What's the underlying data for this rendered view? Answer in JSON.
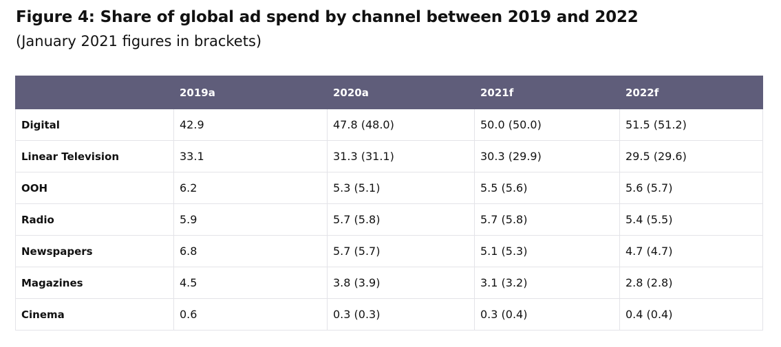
{
  "title": "Figure 4: Share of global ad spend by channel between 2019 and 2022",
  "subtitle": "(January 2021 figures in brackets)",
  "colors": {
    "header_bg": "#5f5d7a",
    "header_text": "#ffffff",
    "border": "#e3e3e8"
  },
  "table": {
    "columns": [
      "",
      "2019a",
      "2020a",
      "2021f",
      "2022f"
    ],
    "rows": [
      {
        "label": "Digital",
        "values": [
          "42.9",
          "47.8 (48.0)",
          "50.0 (50.0)",
          "51.5 (51.2)"
        ]
      },
      {
        "label": "Linear Television",
        "values": [
          "33.1",
          "31.3 (31.1)",
          "30.3 (29.9)",
          "29.5 (29.6)"
        ]
      },
      {
        "label": "OOH",
        "values": [
          "6.2",
          "5.3 (5.1)",
          "5.5 (5.6)",
          "5.6 (5.7)"
        ]
      },
      {
        "label": "Radio",
        "values": [
          "5.9",
          "5.7 (5.8)",
          "5.7 (5.8)",
          "5.4 (5.5)"
        ]
      },
      {
        "label": "Newspapers",
        "values": [
          "6.8",
          "5.7 (5.7)",
          "5.1 (5.3)",
          "4.7 (4.7)"
        ]
      },
      {
        "label": "Magazines",
        "values": [
          "4.5",
          "3.8 (3.9)",
          "3.1 (3.2)",
          "2.8 (2.8)"
        ]
      },
      {
        "label": "Cinema",
        "values": [
          "0.6",
          "0.3 (0.3)",
          "0.3 (0.4)",
          "0.4 (0.4)"
        ]
      }
    ]
  },
  "chart_data": {
    "type": "table",
    "title": "Figure 4: Share of global ad spend by channel between 2019 and 2022",
    "subtitle": "(January 2021 figures in brackets)",
    "categories": [
      "Digital",
      "Linear Television",
      "OOH",
      "Radio",
      "Newspapers",
      "Magazines",
      "Cinema"
    ],
    "columns": [
      "2019a",
      "2020a",
      "2021f",
      "2022f"
    ],
    "series": [
      {
        "name": "2019a",
        "values": [
          42.9,
          33.1,
          6.2,
          5.9,
          6.8,
          4.5,
          0.6
        ]
      },
      {
        "name": "2020a",
        "values": [
          47.8,
          31.3,
          5.3,
          5.7,
          5.7,
          3.8,
          0.3
        ],
        "jan2021_values": [
          48.0,
          31.1,
          5.1,
          5.8,
          5.7,
          3.9,
          0.3
        ]
      },
      {
        "name": "2021f",
        "values": [
          50.0,
          30.3,
          5.5,
          5.7,
          5.1,
          3.1,
          0.3
        ],
        "jan2021_values": [
          50.0,
          29.9,
          5.6,
          5.8,
          5.3,
          3.2,
          0.4
        ]
      },
      {
        "name": "2022f",
        "values": [
          51.5,
          29.5,
          5.6,
          5.4,
          4.7,
          2.8,
          0.4
        ],
        "jan2021_values": [
          51.2,
          29.6,
          5.7,
          5.5,
          4.7,
          2.8,
          0.4
        ]
      }
    ]
  }
}
